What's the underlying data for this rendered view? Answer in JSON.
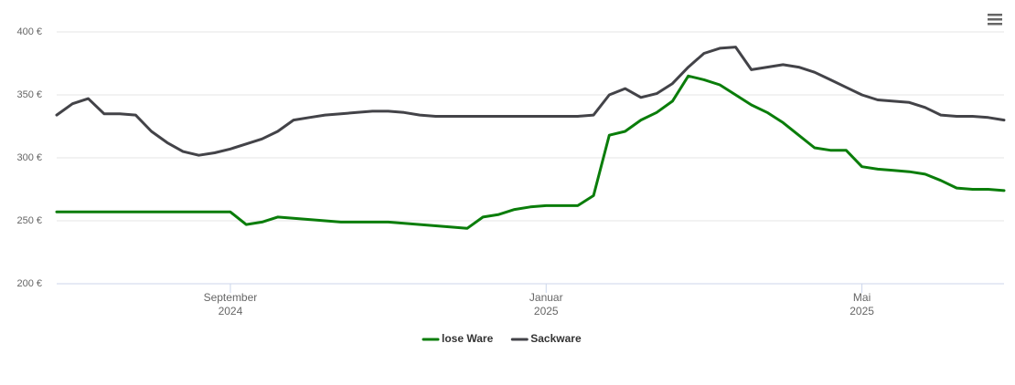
{
  "chart_data": {
    "type": "line",
    "categories": [
      null,
      null,
      null,
      null,
      null,
      null,
      null,
      null,
      null,
      null,
      null,
      [
        "September",
        "2024"
      ],
      null,
      null,
      null,
      null,
      null,
      null,
      null,
      null,
      null,
      null,
      null,
      null,
      null,
      null,
      null,
      null,
      null,
      null,
      null,
      [
        "Januar",
        "2025"
      ],
      null,
      null,
      null,
      null,
      null,
      null,
      null,
      null,
      null,
      null,
      null,
      null,
      null,
      null,
      null,
      null,
      null,
      null,
      null,
      [
        "Mai",
        "2025"
      ],
      null,
      null,
      null,
      null,
      null,
      null,
      null,
      null,
      null
    ],
    "series": [
      {
        "name": "lose Ware",
        "color": "#0a7d0a",
        "values": [
          257,
          257,
          257,
          257,
          257,
          257,
          257,
          257,
          257,
          257,
          257,
          257,
          247,
          249,
          253,
          252,
          251,
          250,
          249,
          249,
          249,
          249,
          248,
          247,
          246,
          245,
          244,
          253,
          255,
          259,
          261,
          262,
          262,
          262,
          270,
          318,
          321,
          330,
          336,
          345,
          365,
          362,
          358,
          350,
          342,
          336,
          328,
          318,
          308,
          306,
          306,
          293,
          291,
          290,
          289,
          287,
          282,
          276,
          275,
          275,
          274
        ]
      },
      {
        "name": "Sackware",
        "color": "#434348",
        "values": [
          334,
          343,
          347,
          335,
          335,
          334,
          321,
          312,
          305,
          302,
          304,
          307,
          311,
          315,
          321,
          330,
          332,
          334,
          335,
          336,
          337,
          337,
          336,
          334,
          333,
          333,
          333,
          333,
          333,
          333,
          333,
          333,
          333,
          333,
          334,
          350,
          355,
          348,
          351,
          359,
          372,
          383,
          387,
          388,
          370,
          372,
          374,
          372,
          368,
          362,
          356,
          350,
          346,
          345,
          344,
          340,
          334,
          333,
          333,
          332,
          330
        ]
      }
    ],
    "ylim": [
      200,
      400
    ],
    "yticks": [
      {
        "value": 200,
        "label": "200 €"
      },
      {
        "value": 250,
        "label": "250 €"
      },
      {
        "value": 300,
        "label": "300 €"
      },
      {
        "value": 350,
        "label": "350 €"
      },
      {
        "value": 400,
        "label": "400 €"
      }
    ],
    "grid": true,
    "legend": "bottom"
  }
}
